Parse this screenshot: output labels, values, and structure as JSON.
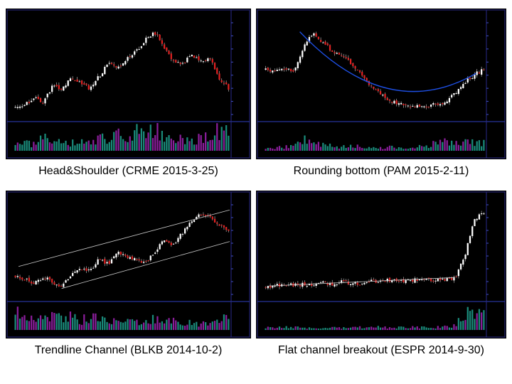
{
  "panels": [
    {
      "caption": "Head&Shoulder (CRME 2015-3-25)",
      "chart_data": {
        "type": "candlestick",
        "pattern": "head and shoulders",
        "ticker": "CRME",
        "date": "2015-3-25",
        "price_path": [
          1.4,
          1.42,
          1.5,
          1.45,
          1.62,
          1.58,
          1.7,
          1.66,
          1.6,
          1.72,
          1.86,
          1.8,
          1.92,
          1.98,
          2.12,
          2.2,
          2.05,
          1.9,
          1.85,
          1.95,
          1.88,
          1.92,
          1.7,
          1.6
        ],
        "volume_path": [
          0.2,
          0.3,
          0.25,
          0.5,
          0.4,
          0.35,
          0.3,
          0.45,
          0.35,
          0.5,
          0.4,
          0.7,
          0.55,
          0.8,
          0.6,
          0.9,
          0.5,
          0.4,
          0.45,
          0.35,
          0.6,
          0.5,
          0.85,
          0.9
        ],
        "overlay": "none",
        "trend_color": "#1e50e6",
        "grid": false
      }
    },
    {
      "caption": "Rounding bottom (PAM 2015-2-11)",
      "chart_data": {
        "type": "candlestick",
        "pattern": "rounding bottom",
        "ticker": "PAM",
        "date": "2015-2-11",
        "price_path": [
          2.2,
          2.15,
          2.22,
          2.18,
          2.6,
          2.9,
          2.7,
          2.55,
          2.45,
          2.3,
          2.1,
          1.9,
          1.75,
          1.62,
          1.55,
          1.52,
          1.5,
          1.52,
          1.55,
          1.6,
          1.75,
          1.95,
          2.1,
          2.2
        ],
        "volume_path": [
          0.1,
          0.12,
          0.15,
          0.2,
          0.5,
          0.3,
          0.25,
          0.2,
          0.15,
          0.2,
          0.15,
          0.1,
          0.12,
          0.15,
          0.1,
          0.12,
          0.15,
          0.2,
          0.3,
          0.35,
          0.25,
          0.4,
          0.3,
          0.35
        ],
        "overlay": "curve",
        "trend_color": "#1e50e6",
        "grid": false
      }
    },
    {
      "caption": "Trendline Channel (BLKB 2014-10-2)",
      "chart_data": {
        "type": "candlestick",
        "pattern": "ascending channel",
        "ticker": "BLKB",
        "date": "2014-10-2",
        "price_path": [
          1.3,
          1.25,
          1.2,
          1.28,
          1.22,
          1.15,
          1.3,
          1.4,
          1.35,
          1.5,
          1.45,
          1.6,
          1.55,
          1.5,
          1.45,
          1.6,
          1.75,
          1.7,
          1.85,
          2.0,
          2.1,
          2.05,
          1.95,
          1.9
        ],
        "volume_path": [
          0.7,
          0.5,
          0.6,
          0.4,
          0.55,
          0.45,
          0.6,
          0.4,
          0.5,
          0.45,
          0.4,
          0.55,
          0.35,
          0.4,
          0.3,
          0.45,
          0.35,
          0.4,
          0.3,
          0.35,
          0.25,
          0.3,
          0.4,
          0.5
        ],
        "overlay": "channel",
        "trend_color": "#c8c8c8",
        "grid": false
      }
    },
    {
      "caption": "Flat channel breakout (ESPR 2014-9-30)",
      "chart_data": {
        "type": "candlestick",
        "pattern": "flat channel breakout",
        "ticker": "ESPR",
        "date": "2014-9-30",
        "price_path": [
          1.3,
          1.32,
          1.35,
          1.33,
          1.36,
          1.34,
          1.38,
          1.36,
          1.4,
          1.38,
          1.37,
          1.42,
          1.4,
          1.43,
          1.41,
          1.42,
          1.44,
          1.43,
          1.45,
          1.44,
          1.46,
          1.9,
          2.6,
          2.7
        ],
        "volume_path": [
          0.1,
          0.08,
          0.12,
          0.1,
          0.09,
          0.11,
          0.1,
          0.12,
          0.1,
          0.09,
          0.11,
          0.1,
          0.12,
          0.1,
          0.11,
          0.1,
          0.12,
          0.1,
          0.11,
          0.15,
          0.2,
          0.6,
          0.9,
          0.8
        ],
        "overlay": "flat",
        "trend_color": "#c8c8c8",
        "grid": false
      }
    }
  ]
}
